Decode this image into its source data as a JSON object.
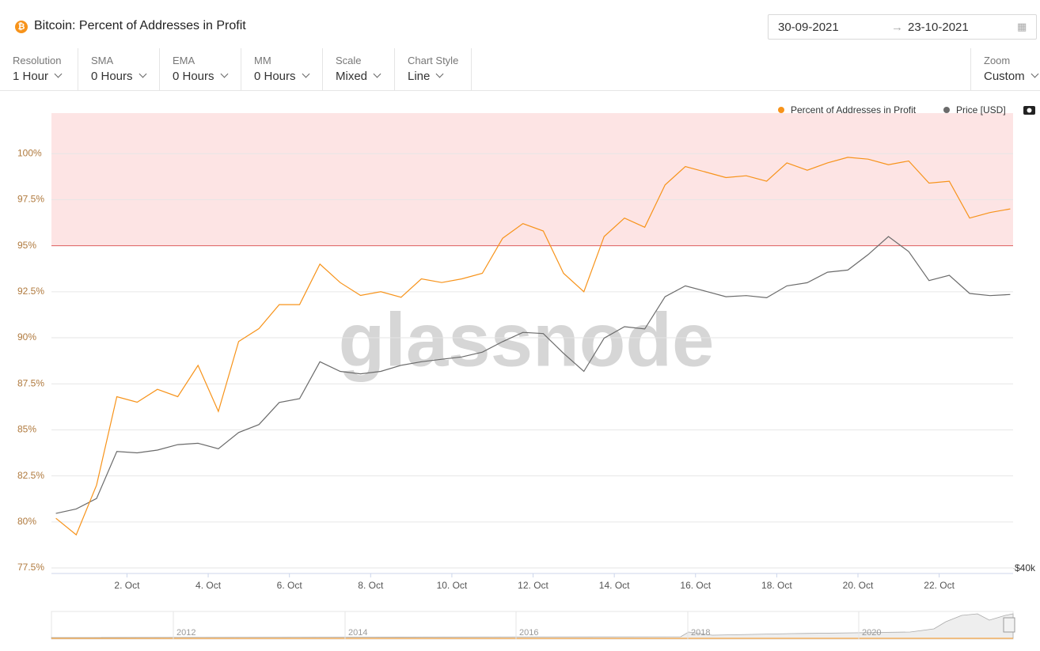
{
  "header": {
    "title": "Bitcoin: Percent of Addresses in Profit",
    "date_from": "30-09-2021",
    "date_to": "23-10-2021"
  },
  "controls": [
    {
      "label": "Resolution",
      "value": "1 Hour"
    },
    {
      "label": "SMA",
      "value": "0 Hours"
    },
    {
      "label": "EMA",
      "value": "0 Hours"
    },
    {
      "label": "MM",
      "value": "0 Hours"
    },
    {
      "label": "Scale",
      "value": "Mixed"
    },
    {
      "label": "Chart Style",
      "value": "Line"
    }
  ],
  "zoom": {
    "label": "Zoom",
    "value": "Custom"
  },
  "watermark": "glassnode",
  "navigator": {
    "labels": [
      "2012",
      "2014",
      "2016",
      "2018",
      "2020"
    ]
  },
  "chart_data": {
    "type": "line",
    "x": [
      0.25,
      0.75,
      1.25,
      1.75,
      2.25,
      2.75,
      3.25,
      3.75,
      4.25,
      4.75,
      5.25,
      5.75,
      6.25,
      6.75,
      7.25,
      7.75,
      8.25,
      8.75,
      9.25,
      9.75,
      10.25,
      10.75,
      11.25,
      11.75,
      12.25,
      12.75,
      13.25,
      13.75,
      14.25,
      14.75,
      15.25,
      15.75,
      16.25,
      16.75,
      17.25,
      17.75,
      18.25,
      18.75,
      19.25,
      19.75,
      20.25,
      20.75,
      21.25,
      21.75,
      22.25,
      22.75,
      23.25,
      23.75
    ],
    "series": [
      {
        "name": "Percent of Addresses in Profit",
        "color": "#f7931a",
        "values": [
          80.2,
          79.3,
          82.0,
          86.8,
          86.5,
          87.2,
          86.8,
          88.5,
          86.0,
          89.8,
          90.5,
          91.8,
          91.8,
          94.0,
          93.0,
          92.3,
          92.5,
          92.2,
          93.2,
          93.0,
          93.2,
          93.5,
          95.4,
          96.2,
          95.8,
          93.5,
          92.5,
          95.5,
          96.5,
          96.0,
          98.3,
          99.3,
          99.0,
          98.7,
          98.8,
          98.5,
          99.5,
          99.1,
          99.5,
          99.8,
          99.7,
          99.4,
          99.6,
          98.4,
          98.5,
          96.5,
          96.8,
          97.0
        ]
      },
      {
        "name": "Price [USD]",
        "color": "#6b6b6b",
        "axis": "y2",
        "values": [
          43500,
          43800,
          44500,
          47800,
          47700,
          47900,
          48300,
          48400,
          48000,
          49200,
          49800,
          51500,
          51800,
          54800,
          54000,
          53800,
          54000,
          54500,
          54800,
          55000,
          55200,
          55600,
          56500,
          57300,
          57200,
          55500,
          54000,
          56800,
          57800,
          57600,
          60500,
          61500,
          61000,
          60500,
          60600,
          60400,
          61500,
          61800,
          62800,
          63000,
          64500,
          66300,
          64800,
          62000,
          62500,
          60800,
          60600,
          60700
        ]
      }
    ],
    "xlim": [
      0.14,
      23.82
    ],
    "xticks": [
      {
        "value": 2,
        "label": "2. Oct"
      },
      {
        "value": 4,
        "label": "4. Oct"
      },
      {
        "value": 6,
        "label": "6. Oct"
      },
      {
        "value": 8,
        "label": "8. Oct"
      },
      {
        "value": 10,
        "label": "10. Oct"
      },
      {
        "value": 12,
        "label": "12. Oct"
      },
      {
        "value": 14,
        "label": "14. Oct"
      },
      {
        "value": 16,
        "label": "16. Oct"
      },
      {
        "value": 18,
        "label": "18. Oct"
      },
      {
        "value": 20,
        "label": "20. Oct"
      },
      {
        "value": 22,
        "label": "22. Oct"
      }
    ],
    "ylim": [
      77.2,
      102.2
    ],
    "yticks": [
      {
        "value": 77.5,
        "label": "77.5%"
      },
      {
        "value": 80,
        "label": "80%"
      },
      {
        "value": 82.5,
        "label": "82.5%"
      },
      {
        "value": 85,
        "label": "85%"
      },
      {
        "value": 87.5,
        "label": "87.5%"
      },
      {
        "value": 90,
        "label": "90%"
      },
      {
        "value": 92.5,
        "label": "92.5%"
      },
      {
        "value": 95,
        "label": "95%"
      },
      {
        "value": 97.5,
        "label": "97.5%"
      },
      {
        "value": 100,
        "label": "100%"
      }
    ],
    "y2lim": [
      39700,
      80000
    ],
    "y2scale": "log",
    "y2ticks": [
      {
        "value": 40000,
        "label": "$40k"
      }
    ],
    "threshold": 95,
    "threshold_color": "#e06060",
    "band_color": "#fde4e4",
    "grid": true,
    "legend": "top-right"
  }
}
